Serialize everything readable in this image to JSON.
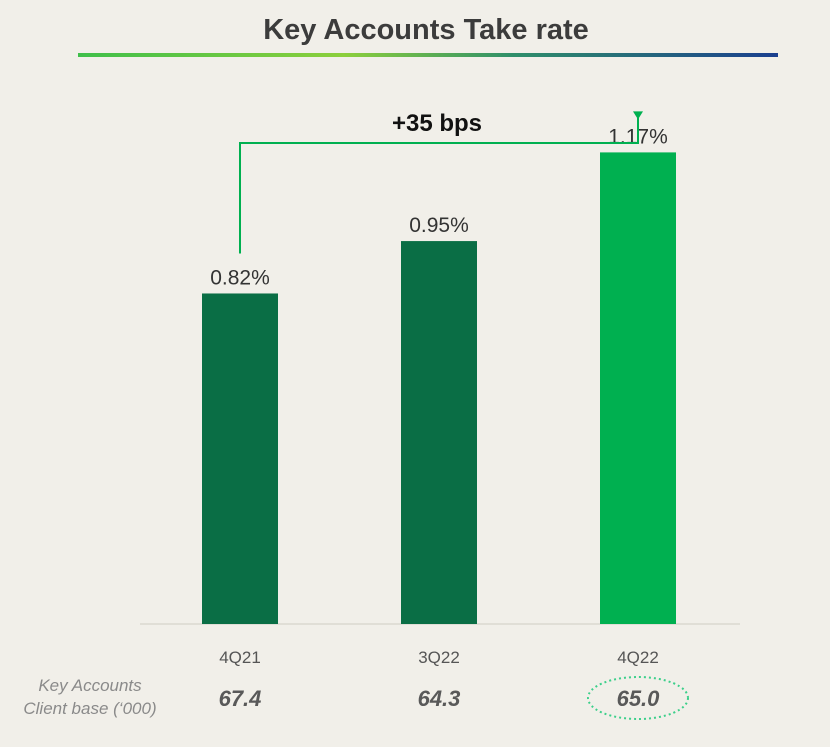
{
  "title": "Key Accounts Take rate",
  "change_annotation": "+35 bps",
  "client_base": {
    "caption_line1": "Key Accounts",
    "caption_line2": "Client base (‘000)",
    "values": [
      "67.4",
      "64.3",
      "65.0"
    ],
    "highlight_index": 2
  },
  "colors": {
    "bar_dark": "#0a6e45",
    "bar_highlight": "#00b050",
    "connector": "#00b050",
    "highlight_ellipse": "#3ccf8a"
  },
  "chart_data": {
    "type": "bar",
    "title": "Key Accounts Take rate",
    "categories": [
      "4Q21",
      "3Q22",
      "4Q22"
    ],
    "values": [
      0.82,
      0.95,
      1.17
    ],
    "labels": [
      "0.82%",
      "0.95%",
      "1.17%"
    ],
    "unit": "%",
    "ylim": [
      0,
      1.3
    ],
    "highlight_index": 2,
    "grid": false,
    "legend": "none"
  }
}
